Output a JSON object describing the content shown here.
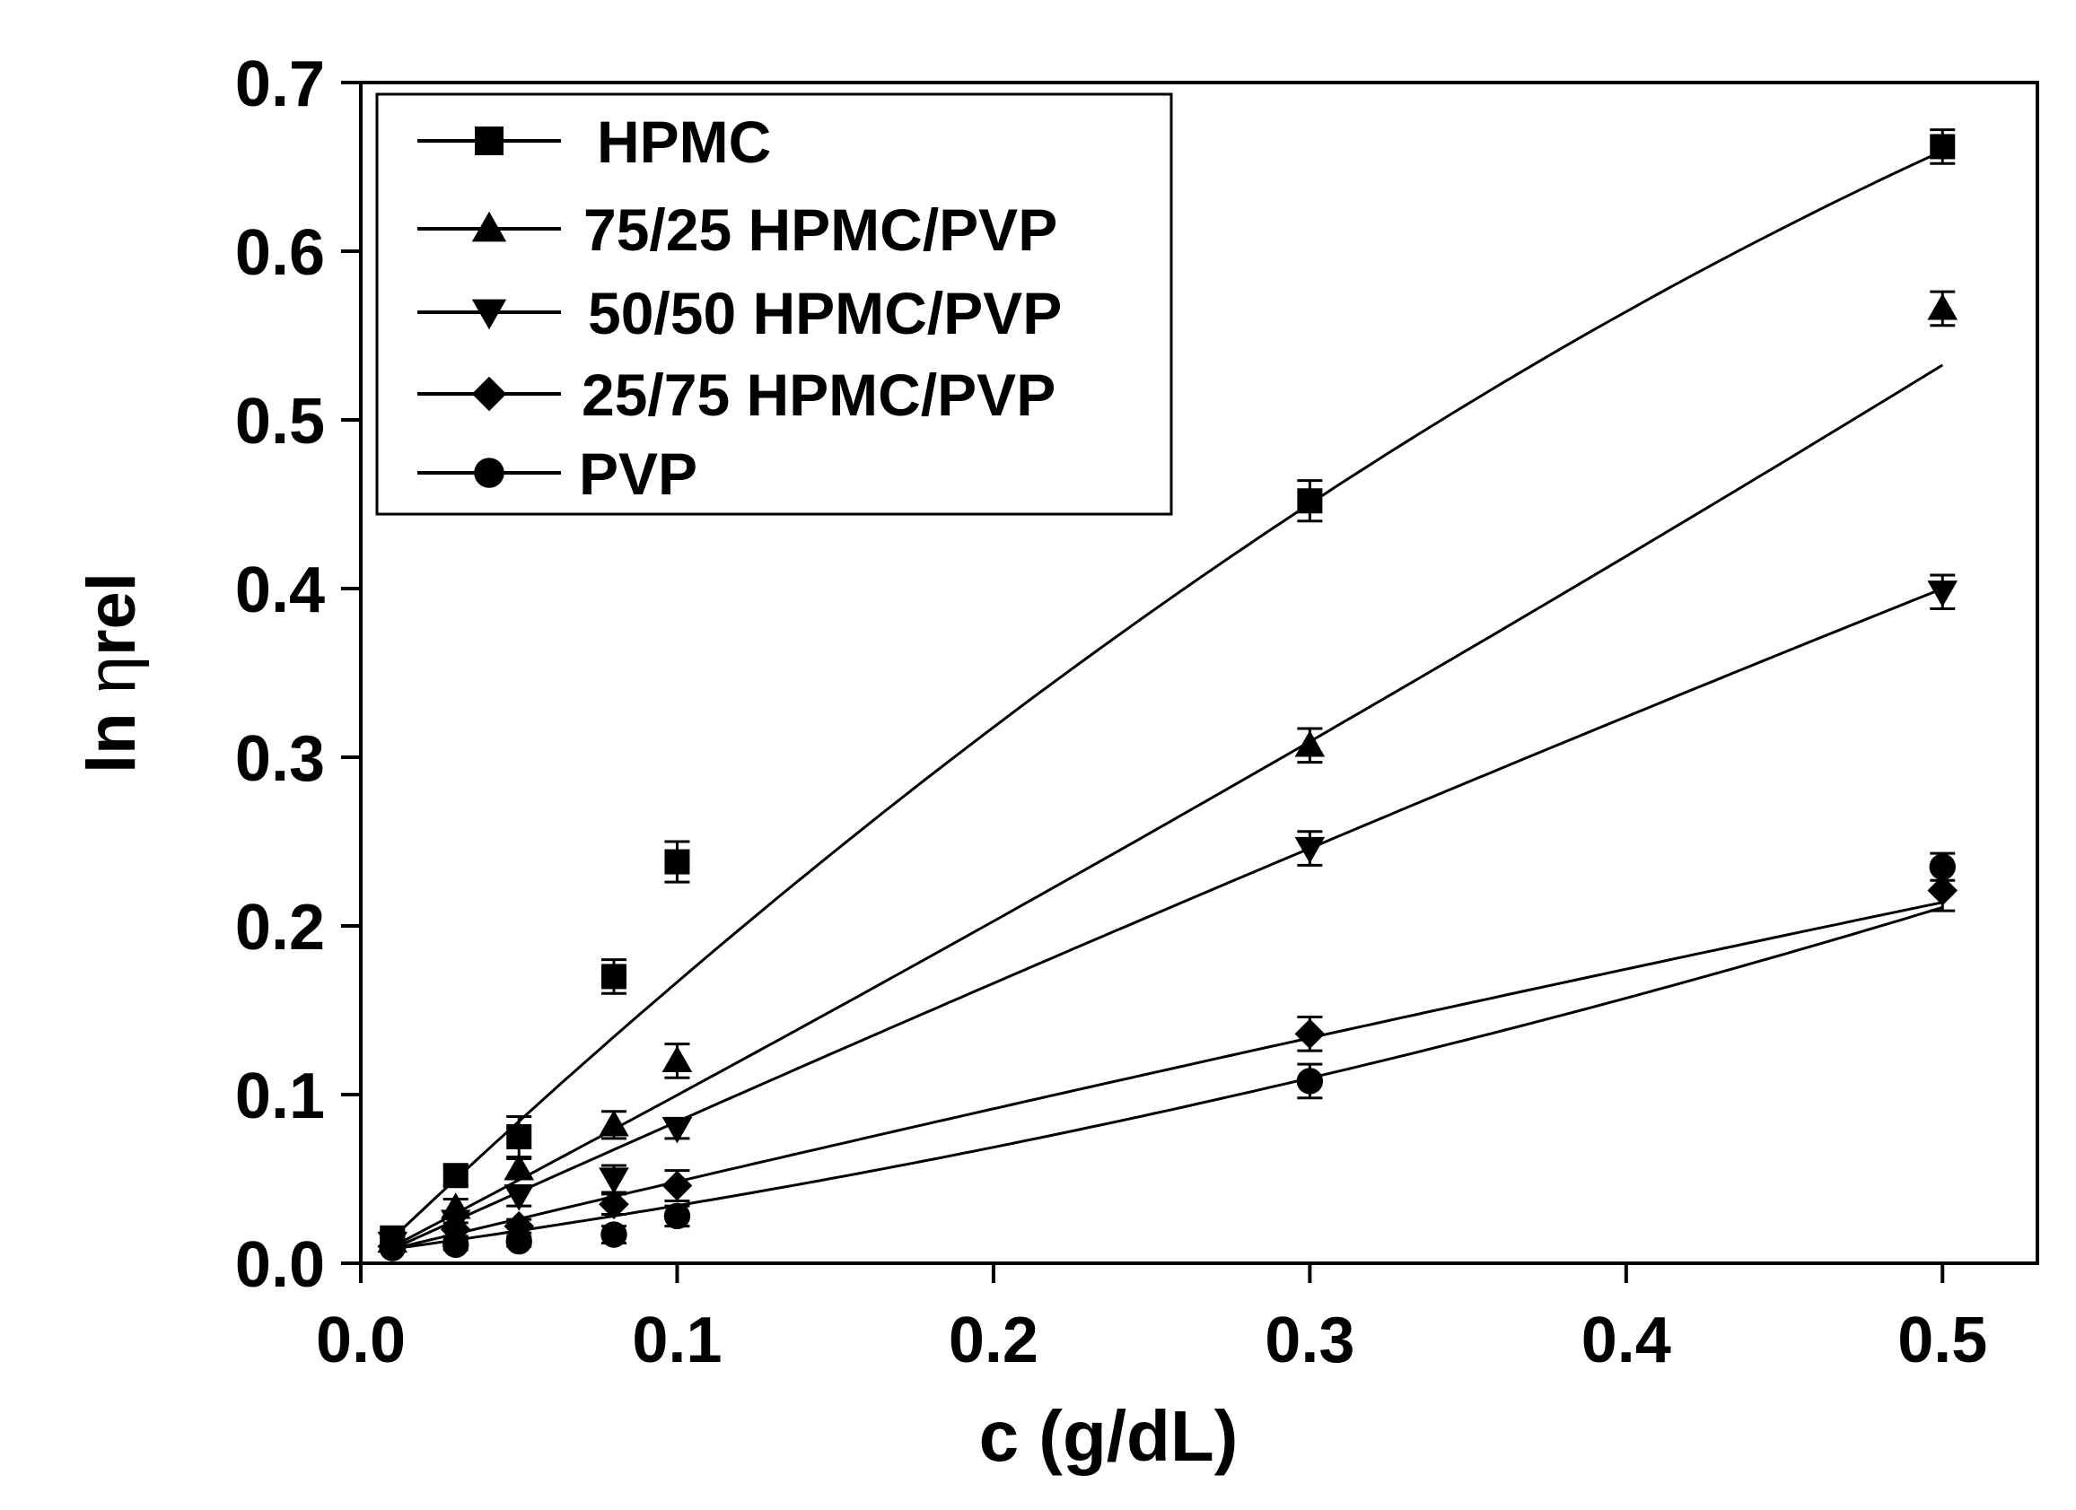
{
  "chart_data": {
    "type": "scatter",
    "title": "",
    "xlabel": "c (g/dL)",
    "ylabel_prefix": "ln ",
    "ylabel_symbol": "η",
    "ylabel_suffix": "rel",
    "xlim": [
      0.0,
      0.53
    ],
    "ylim": [
      0.0,
      0.7
    ],
    "xticks": [
      0.0,
      0.1,
      0.2,
      0.3,
      0.4,
      0.5
    ],
    "xtick_labels": [
      "0.0",
      "0.1",
      "0.2",
      "0.3",
      "0.4",
      "0.5"
    ],
    "yticks": [
      0.0,
      0.1,
      0.2,
      0.3,
      0.4,
      0.5,
      0.6,
      0.7
    ],
    "ytick_labels": [
      "0.0",
      "0.1",
      "0.2",
      "0.3",
      "0.4",
      "0.5",
      "0.6",
      "0.7"
    ],
    "grid": false,
    "legend_position": "top-left",
    "x": [
      0.01,
      0.03,
      0.05,
      0.08,
      0.1,
      0.3,
      0.5
    ],
    "series": [
      {
        "name": "HPMC",
        "marker": "square",
        "values": [
          0.015,
          0.052,
          0.075,
          0.17,
          0.238,
          0.452,
          0.662
        ],
        "errors": [
          0.004,
          0.006,
          0.012,
          0.01,
          0.012,
          0.012,
          0.01
        ],
        "fit": [
          -0.93,
          1.79,
          -0.003
        ]
      },
      {
        "name": "75/25 HPMC/PVP",
        "marker": "triangle-up",
        "values": [
          0.013,
          0.033,
          0.056,
          0.082,
          0.12,
          0.307,
          0.566
        ],
        "errors": [
          0.003,
          0.005,
          0.006,
          0.008,
          0.01,
          0.01,
          0.01
        ],
        "fit": [
          0.17,
          0.98,
          0.0
        ]
      },
      {
        "name": "50/50 HPMC/PVP",
        "marker": "triangle-down",
        "values": [
          0.012,
          0.025,
          0.04,
          0.05,
          0.08,
          0.246,
          0.398
        ],
        "errors": [
          0.003,
          0.005,
          0.006,
          0.008,
          0.006,
          0.01,
          0.01
        ],
        "fit": [
          -0.1,
          0.85,
          0.0
        ]
      },
      {
        "name": "25/75 HPMC/PVP",
        "marker": "diamond",
        "values": [
          0.01,
          0.02,
          0.022,
          0.035,
          0.046,
          0.136,
          0.221
        ],
        "errors": [
          0.003,
          0.004,
          0.004,
          0.006,
          0.009,
          0.01,
          0.012
        ],
        "fit": [
          -0.06,
          0.45,
          0.004
        ]
      },
      {
        "name": "PVP",
        "marker": "circle",
        "values": [
          0.009,
          0.011,
          0.013,
          0.017,
          0.028,
          0.108,
          0.235
        ],
        "errors": [
          0.002,
          0.003,
          0.003,
          0.005,
          0.006,
          0.01,
          0.008
        ],
        "fit": [
          0.32,
          0.25,
          0.006
        ]
      }
    ]
  }
}
